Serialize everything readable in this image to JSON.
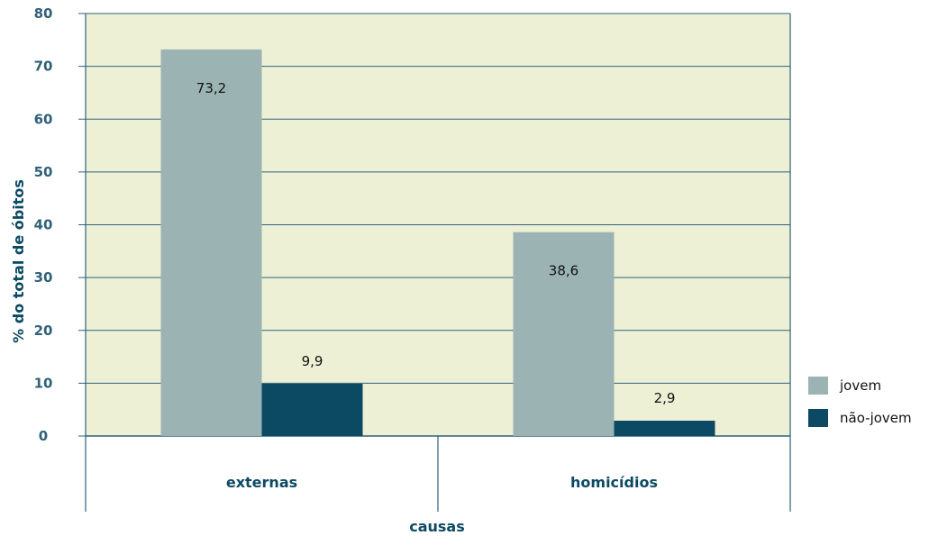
{
  "chart_data": {
    "type": "bar",
    "title": "",
    "xlabel": "causas",
    "ylabel": "% do total de óbitos",
    "categories": [
      "externas",
      "homicídios"
    ],
    "series": [
      {
        "name": "jovem",
        "values": [
          73.2,
          38.6
        ],
        "labels": [
          "73,2",
          "38,6"
        ],
        "color": "#9bb4b3"
      },
      {
        "name": "não-jovem",
        "values": [
          9.9,
          2.9
        ],
        "labels": [
          "9,9",
          "2,9"
        ],
        "color": "#0c4a63"
      }
    ],
    "ylim": [
      0,
      80
    ],
    "yticks": [
      0,
      10,
      20,
      30,
      40,
      50,
      60,
      70,
      80
    ],
    "grid": true,
    "legend_position": "right",
    "plot_background": "#eef0d6",
    "axis_color": "#2f6178"
  }
}
